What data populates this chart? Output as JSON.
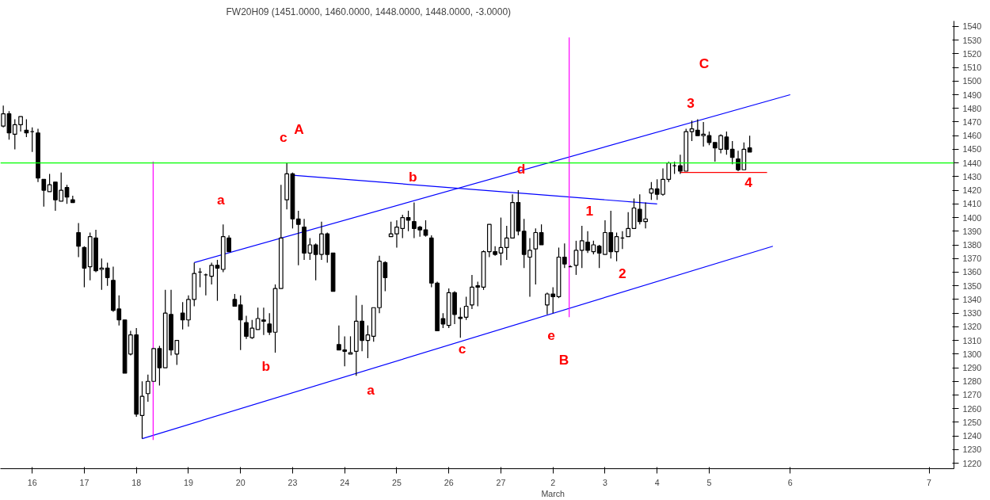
{
  "chart_data": {
    "type": "candlestick",
    "title": "FW20H09 (1451.0000, 1460.0000, 1448.0000, 1448.0000, -3.0000)",
    "categories": [
      null,
      null,
      null,
      null,
      null,
      "16",
      null,
      null,
      null,
      null,
      null,
      null,
      null,
      null,
      "17",
      null,
      null,
      null,
      null,
      null,
      null,
      null,
      null,
      "18",
      null,
      null,
      null,
      null,
      null,
      null,
      null,
      null,
      "19",
      null,
      null,
      null,
      null,
      null,
      null,
      null,
      null,
      "20",
      null,
      null,
      null,
      null,
      null,
      null,
      null,
      null,
      "23",
      null,
      null,
      null,
      null,
      null,
      null,
      null,
      null,
      "24",
      null,
      null,
      null,
      null,
      null,
      null,
      null,
      null,
      "25",
      null,
      null,
      null,
      null,
      null,
      null,
      null,
      null,
      "26",
      null,
      null,
      null,
      null,
      null,
      null,
      null,
      null,
      "27",
      null,
      null,
      null,
      null,
      null,
      null,
      null,
      null,
      "2\nMarch",
      null,
      null,
      null,
      null,
      null,
      null,
      null,
      null,
      "3",
      null,
      null,
      null,
      null,
      null,
      null,
      null,
      null,
      "4",
      null,
      null,
      null,
      null,
      null,
      null,
      null,
      null,
      "5",
      null,
      null,
      null,
      null,
      null,
      null,
      null,
      null,
      null,
      null,
      null,
      null,
      null,
      "6",
      null,
      null,
      null,
      null,
      null,
      null,
      null,
      null,
      null,
      null,
      null,
      null,
      null,
      null,
      null,
      null,
      null,
      null,
      null,
      null,
      null,
      null,
      null,
      "7"
    ],
    "ohlc": [
      [
        1467,
        1482,
        1466,
        1476
      ],
      [
        1476,
        1478,
        1457,
        1462
      ],
      [
        1461,
        1472,
        1450,
        1468
      ],
      [
        1468,
        1474,
        1463,
        1474
      ],
      [
        1464,
        1472,
        1459,
        1462
      ],
      [
        1463,
        1466,
        1448,
        1463
      ],
      [
        1462,
        1465,
        1426,
        1429
      ],
      [
        1428,
        1428,
        1408,
        1420
      ],
      [
        1419,
        1432,
        1419,
        1424
      ],
      [
        1426,
        1426,
        1405,
        1413
      ],
      [
        1412,
        1433,
        1412,
        1420
      ],
      [
        1422,
        1424,
        1410,
        1415
      ],
      [
        1413,
        1416,
        1411,
        1411
      ],
      [
        1389,
        1396,
        1371,
        1379
      ],
      [
        1378,
        1379,
        1349,
        1363
      ],
      [
        1364,
        1389,
        1354,
        1386
      ],
      [
        1385,
        1391,
        1360,
        1361
      ],
      [
        1362,
        1370,
        1347,
        1363
      ],
      [
        1363,
        1367,
        1350,
        1356
      ],
      [
        1354,
        1364,
        1331,
        1332
      ],
      [
        1333,
        1343,
        1321,
        1325
      ],
      [
        1325,
        1325,
        1286,
        1286
      ],
      [
        1300,
        1317,
        1299,
        1314
      ],
      [
        1314,
        1319,
        1254,
        1256
      ],
      [
        1255,
        1280,
        1238,
        1269
      ],
      [
        1271,
        1285,
        1265,
        1280
      ],
      [
        1280,
        1304,
        1280,
        1304
      ],
      [
        1304,
        1306,
        1277,
        1290
      ],
      [
        1290,
        1347,
        1290,
        1330
      ],
      [
        1329,
        1347,
        1299,
        1303
      ],
      [
        1300,
        1310,
        1292,
        1310
      ],
      [
        1330,
        1338,
        1318,
        1325
      ],
      [
        1325,
        1343,
        1320,
        1340
      ],
      [
        1340,
        1367,
        1335,
        1359
      ],
      [
        1360,
        1363,
        1349,
        1360
      ],
      [
        1358,
        1359,
        1343,
        1358
      ],
      [
        1357,
        1367,
        1351,
        1365
      ],
      [
        1365,
        1369,
        1339,
        1363
      ],
      [
        1362,
        1395,
        1360,
        1386
      ],
      [
        1385,
        1387,
        1375,
        1375
      ],
      [
        1340,
        1344,
        1335,
        1335
      ],
      [
        1336,
        1343,
        1303,
        1325
      ],
      [
        1323,
        1328,
        1311,
        1313
      ],
      [
        1312,
        1325,
        1311,
        1319
      ],
      [
        1318,
        1334,
        1318,
        1326
      ],
      [
        1325,
        1334,
        1314,
        1324
      ],
      [
        1322,
        1330,
        1314,
        1316
      ],
      [
        1316,
        1351,
        1301,
        1348
      ],
      [
        1348,
        1424,
        1348,
        1385
      ],
      [
        1413,
        1440,
        1406,
        1432
      ],
      [
        1432,
        1433,
        1392,
        1399
      ],
      [
        1399,
        1405,
        1365,
        1395
      ],
      [
        1393,
        1399,
        1369,
        1374
      ],
      [
        1374,
        1385,
        1369,
        1380
      ],
      [
        1380,
        1381,
        1354,
        1373
      ],
      [
        1373,
        1397,
        1369,
        1388
      ],
      [
        1388,
        1389,
        1367,
        1373
      ],
      [
        1374,
        1374,
        1346,
        1346
      ],
      [
        1307,
        1321,
        1303,
        1303
      ],
      [
        1303,
        1313,
        1291,
        1302
      ],
      [
        1300,
        1313,
        1300,
        1301
      ],
      [
        1302,
        1343,
        1284,
        1324
      ],
      [
        1324,
        1336,
        1302,
        1310
      ],
      [
        1310,
        1321,
        1297,
        1314
      ],
      [
        1313,
        1334,
        1309,
        1334
      ],
      [
        1334,
        1372,
        1330,
        1368
      ],
      [
        1367,
        1368,
        1346,
        1356
      ],
      [
        1386,
        1397,
        1386,
        1388
      ],
      [
        1388,
        1398,
        1378,
        1393
      ],
      [
        1392,
        1402,
        1385,
        1400
      ],
      [
        1400,
        1405,
        1390,
        1398
      ],
      [
        1397,
        1411,
        1385,
        1392
      ],
      [
        1393,
        1394,
        1386,
        1391
      ],
      [
        1391,
        1398,
        1386,
        1387
      ],
      [
        1385,
        1387,
        1349,
        1352
      ],
      [
        1352,
        1353,
        1317,
        1317
      ],
      [
        1326,
        1330,
        1319,
        1322
      ],
      [
        1321,
        1348,
        1319,
        1345
      ],
      [
        1345,
        1346,
        1322,
        1329
      ],
      [
        1327,
        1334,
        1312,
        1326
      ],
      [
        1327,
        1342,
        1325,
        1335
      ],
      [
        1336,
        1358,
        1333,
        1349
      ],
      [
        1350,
        1353,
        1335,
        1349
      ],
      [
        1349,
        1376,
        1347,
        1375
      ],
      [
        1375,
        1395,
        1371,
        1395
      ],
      [
        1375,
        1379,
        1372,
        1373
      ],
      [
        1374,
        1400,
        1365,
        1378
      ],
      [
        1378,
        1394,
        1369,
        1385
      ],
      [
        1385,
        1417,
        1385,
        1411
      ],
      [
        1411,
        1420,
        1387,
        1390
      ],
      [
        1390,
        1399,
        1363,
        1373
      ],
      [
        1371,
        1385,
        1342,
        1376
      ],
      [
        1377,
        1392,
        1351,
        1389
      ],
      [
        1389,
        1395,
        1380,
        1380
      ],
      [
        1336,
        1345,
        1329,
        1344
      ],
      [
        1344,
        1349,
        1330,
        1342
      ],
      [
        1342,
        1378,
        1341,
        1371
      ],
      [
        1371,
        1381,
        1363,
        1366
      ],
      [
        1364,
        1365,
        1364,
        1364
      ],
      [
        1365,
        1383,
        1358,
        1376
      ],
      [
        1376,
        1394,
        1363,
        1383
      ],
      [
        1382,
        1390,
        1374,
        1376
      ],
      [
        1375,
        1383,
        1373,
        1380
      ],
      [
        1379,
        1380,
        1363,
        1374
      ],
      [
        1373,
        1398,
        1373,
        1389
      ],
      [
        1389,
        1405,
        1370,
        1375
      ],
      [
        1375,
        1389,
        1368,
        1386
      ],
      [
        1385,
        1390,
        1377,
        1385
      ],
      [
        1386,
        1404,
        1386,
        1392
      ],
      [
        1392,
        1414,
        1392,
        1407
      ],
      [
        1406,
        1417,
        1395,
        1397
      ],
      [
        1397,
        1411,
        1392,
        1399
      ],
      [
        1418,
        1426,
        1413,
        1421
      ],
      [
        1421,
        1428,
        1413,
        1417
      ],
      [
        1417,
        1436,
        1416,
        1428
      ],
      [
        1428,
        1441,
        1426,
        1440
      ],
      [
        1438,
        1441,
        1432,
        1438
      ],
      [
        1438,
        1446,
        1432,
        1434
      ],
      [
        1434,
        1465,
        1434,
        1463
      ],
      [
        1463,
        1471,
        1456,
        1465
      ],
      [
        1464,
        1472,
        1460,
        1460
      ],
      [
        1460,
        1470,
        1452,
        1461
      ],
      [
        1460,
        1463,
        1453,
        1455
      ],
      [
        1455,
        1455,
        1441,
        1451
      ],
      [
        1450,
        1461,
        1447,
        1460
      ],
      [
        1459,
        1463,
        1446,
        1450
      ],
      [
        1450,
        1456,
        1439,
        1444
      ],
      [
        1443,
        1449,
        1434,
        1435
      ],
      [
        1435,
        1455,
        1435,
        1450
      ],
      [
        1451,
        1460,
        1448,
        1448
      ],
      null,
      null,
      null,
      null,
      null,
      null,
      null,
      null,
      null,
      null,
      null,
      null,
      null,
      null,
      null,
      null,
      null,
      null,
      null,
      null,
      null,
      null,
      null,
      null,
      null,
      null,
      null,
      null,
      null,
      null,
      null
    ],
    "series": [
      {
        "type": "line",
        "color": "#0000ff",
        "values": [
          null,
          null,
          null,
          null,
          null,
          null,
          null,
          null,
          null,
          null,
          null,
          null,
          null,
          null,
          null,
          null,
          null,
          null,
          null,
          null,
          null,
          null,
          null,
          null,
          1238,
          null,
          null,
          null,
          null,
          null,
          null,
          null,
          null,
          null,
          null,
          null,
          null,
          null,
          null,
          null,
          null,
          null,
          null,
          null,
          null,
          null,
          null,
          null,
          null,
          null,
          null,
          null,
          null,
          null,
          null,
          null,
          null,
          null,
          null,
          null,
          null,
          null,
          null,
          null,
          null,
          null,
          null,
          null,
          null,
          null,
          null,
          null,
          null,
          null,
          null,
          null,
          null,
          null,
          null,
          null,
          null,
          null,
          null,
          null,
          null,
          null,
          null,
          null,
          null,
          null,
          null,
          null,
          null,
          null,
          null,
          null,
          null,
          null,
          null,
          null,
          null,
          null,
          null,
          null,
          null,
          null,
          null,
          null,
          null,
          null,
          null,
          null,
          null,
          null,
          null,
          null,
          null,
          null,
          null,
          null,
          null,
          null,
          null,
          null,
          null,
          null,
          null,
          null,
          null,
          null,
          null,
          null,
          null,
          1379,
          null,
          null,
          null,
          null,
          null,
          null,
          null,
          null,
          null,
          null,
          null,
          null,
          null,
          null,
          null,
          null,
          null,
          null,
          null,
          null,
          null,
          null,
          null,
          null,
          null,
          null,
          null
        ]
      },
      {
        "type": "line",
        "color": "#0000ff",
        "values": [
          null,
          null,
          null,
          null,
          null,
          null,
          null,
          null,
          null,
          null,
          null,
          null,
          null,
          null,
          null,
          null,
          null,
          null,
          null,
          null,
          null,
          null,
          null,
          null,
          null,
          null,
          null,
          null,
          null,
          null,
          null,
          null,
          null,
          1367,
          null,
          null,
          null,
          null,
          null,
          null,
          null,
          null,
          null,
          null,
          null,
          null,
          null,
          null,
          null,
          null,
          null,
          null,
          null,
          null,
          null,
          null,
          null,
          null,
          null,
          null,
          null,
          null,
          null,
          null,
          null,
          null,
          null,
          null,
          null,
          null,
          null,
          null,
          null,
          null,
          null,
          null,
          null,
          null,
          null,
          null,
          null,
          null,
          null,
          null,
          null,
          null,
          null,
          null,
          null,
          null,
          null,
          null,
          null,
          null,
          null,
          null,
          null,
          null,
          null,
          null,
          null,
          null,
          null,
          null,
          null,
          null,
          null,
          null,
          null,
          null,
          null,
          null,
          null,
          null,
          null,
          null,
          null,
          null,
          null,
          null,
          null,
          null,
          null,
          null,
          null,
          null,
          null,
          null,
          null,
          null,
          null,
          null,
          null,
          null,
          null,
          null,
          1490,
          null,
          null,
          null,
          null,
          null,
          null,
          null,
          null,
          null,
          null,
          null,
          null,
          null,
          null,
          null,
          null,
          null,
          null,
          null,
          null,
          null,
          null,
          null,
          null
        ]
      },
      {
        "type": "line",
        "color": "#0000ff",
        "values": [
          null,
          null,
          null,
          null,
          null,
          null,
          null,
          null,
          null,
          null,
          null,
          null,
          null,
          null,
          null,
          null,
          null,
          null,
          null,
          null,
          null,
          null,
          null,
          null,
          null,
          null,
          null,
          null,
          null,
          null,
          null,
          null,
          null,
          null,
          null,
          null,
          null,
          null,
          null,
          null,
          null,
          null,
          null,
          null,
          null,
          null,
          null,
          null,
          null,
          null,
          1431,
          null,
          null,
          null,
          null,
          null,
          null,
          null,
          null,
          null,
          null,
          null,
          null,
          null,
          null,
          null,
          null,
          null,
          null,
          null,
          null,
          null,
          null,
          null,
          null,
          null,
          null,
          null,
          null,
          null,
          null,
          null,
          null,
          null,
          null,
          null,
          null,
          null,
          null,
          null,
          null,
          null,
          null,
          null,
          null,
          null,
          null,
          null,
          null,
          null,
          null,
          null,
          null,
          null,
          null,
          null,
          null,
          null,
          null,
          null,
          null,
          null,
          null,
          1410,
          null,
          null,
          null,
          null,
          null,
          null,
          null,
          null,
          null,
          null,
          null,
          null,
          null,
          null,
          null,
          null,
          null,
          null,
          null,
          null,
          null,
          null,
          null,
          null,
          null,
          null,
          null,
          null,
          null,
          null,
          null,
          null,
          null,
          null,
          null,
          null,
          null,
          null,
          null,
          null,
          null,
          null,
          null,
          null,
          null,
          null,
          null
        ]
      },
      {
        "type": "line",
        "color": "#ff0000",
        "values": [
          null,
          null,
          null,
          null,
          null,
          null,
          null,
          null,
          null,
          null,
          null,
          null,
          null,
          null,
          null,
          null,
          null,
          null,
          null,
          null,
          null,
          null,
          null,
          null,
          null,
          null,
          null,
          null,
          null,
          null,
          null,
          null,
          null,
          null,
          null,
          null,
          null,
          null,
          null,
          null,
          null,
          null,
          null,
          null,
          null,
          null,
          null,
          null,
          null,
          null,
          null,
          null,
          null,
          null,
          null,
          null,
          null,
          null,
          null,
          null,
          null,
          null,
          null,
          null,
          null,
          null,
          null,
          null,
          null,
          null,
          null,
          null,
          null,
          null,
          null,
          null,
          null,
          null,
          null,
          null,
          null,
          null,
          null,
          null,
          null,
          null,
          null,
          null,
          null,
          null,
          null,
          null,
          null,
          null,
          null,
          null,
          null,
          null,
          null,
          null,
          null,
          null,
          null,
          null,
          null,
          null,
          null,
          null,
          null,
          null,
          null,
          null,
          null,
          null,
          null,
          null,
          null,
          1433,
          null,
          null,
          null,
          null,
          null,
          null,
          null,
          null,
          null,
          null,
          null,
          null,
          null,
          null,
          1433,
          null,
          null,
          null,
          null,
          null,
          null,
          null,
          null,
          null,
          null,
          null,
          null,
          null,
          null,
          null,
          null,
          null,
          null,
          null,
          null,
          null,
          null,
          null,
          null,
          null,
          null,
          null,
          null
        ]
      }
    ],
    "ref_lines": [
      {
        "axis": "y",
        "value": 1440,
        "color": "#00ff00"
      }
    ],
    "annotations": [
      "C",
      "3",
      {
        "text": "4",
        "y": 1433
      },
      "A",
      "c",
      "a",
      "b",
      "d",
      "1",
      "2",
      "e",
      "B",
      "b",
      "a",
      "c"
    ],
    "ylim": [
      1216,
      1544
    ],
    "yticks": [
      1220,
      1230,
      1240,
      1250,
      1260,
      1270,
      1280,
      1290,
      1300,
      1310,
      1320,
      1330,
      1340,
      1350,
      1360,
      1370,
      1380,
      1390,
      1400,
      1410,
      1420,
      1430,
      1440,
      1450,
      1460,
      1470,
      1480,
      1490,
      1500,
      1510,
      1520,
      1530,
      1540
    ],
    "grid": false
  }
}
